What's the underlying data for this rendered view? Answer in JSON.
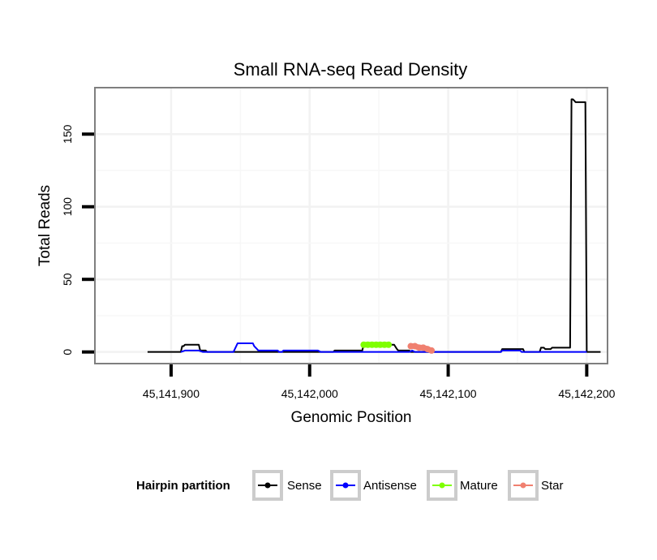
{
  "chart_data": {
    "type": "line",
    "title": "Small RNA-seq Read Density",
    "xlabel": "Genomic Position",
    "ylabel": "Total Reads",
    "xlim": [
      45141845,
      45142215
    ],
    "ylim": [
      -8,
      182
    ],
    "x_ticks": [
      45141900,
      45142000,
      45142100,
      45142200
    ],
    "x_tick_labels": [
      "45,141,900",
      "45,142,000",
      "45,142,100",
      "45,142,200"
    ],
    "y_ticks": [
      0,
      50,
      100,
      150
    ],
    "y_tick_labels": [
      "0",
      "50",
      "100",
      "150"
    ],
    "grid": true,
    "legend": {
      "title": "Hairpin partition",
      "placement": "bottom",
      "entries": [
        "Sense",
        "Antisense",
        "Mature",
        "Star"
      ]
    },
    "series": [
      {
        "name": "Sense",
        "color": "#000000",
        "style": "step",
        "x": [
          45141883,
          45141907,
          45141908,
          45141909,
          45141910,
          45141911,
          45141920,
          45141921,
          45141925,
          45141926,
          45142017,
          45142018,
          45142038,
          45142039,
          45142061,
          45142063,
          45142064,
          45142072,
          45142073,
          45142138,
          45142139,
          45142154,
          45142155,
          45142166,
          45142167,
          45142169,
          45142170,
          45142174,
          45142175,
          45142188,
          45142189,
          45142190,
          45142191,
          45142192,
          45142199,
          45142200,
          45142210
        ],
        "y": [
          0,
          0,
          4,
          4,
          5,
          5,
          5,
          1,
          1,
          0,
          0,
          1,
          1,
          5,
          5,
          2,
          1,
          1,
          0,
          0,
          2,
          2,
          0,
          0,
          3,
          3,
          2,
          2,
          3,
          3,
          174,
          174,
          173,
          172,
          172,
          0,
          0
        ]
      },
      {
        "name": "Antisense",
        "color": "#0000ff",
        "style": "step",
        "x": [
          45141907,
          45141910,
          45141920,
          45141923,
          45141945,
          45141947,
          45141948,
          45141959,
          45141960,
          45141962,
          45141963,
          45141977,
          45141978,
          45141980,
          45141981,
          45141990,
          45142006,
          45142008,
          45142072,
          45142074,
          45142076,
          45142138,
          45142139,
          45142152,
          45142153,
          45142200
        ],
        "y": [
          0,
          1,
          1,
          0,
          0,
          4,
          6,
          6,
          4,
          2,
          1,
          1,
          0,
          0,
          1,
          1,
          1,
          0,
          0,
          1,
          0,
          0,
          1,
          1,
          0,
          0
        ]
      },
      {
        "name": "Mature",
        "color": "#7fff00",
        "style": "points",
        "x": [
          45142039,
          45142042,
          45142045,
          45142048,
          45142051,
          45142054,
          45142057
        ],
        "y": [
          5,
          5,
          5,
          5,
          5,
          5,
          5
        ]
      },
      {
        "name": "Star",
        "color": "#f08070",
        "style": "points",
        "x": [
          45142073,
          45142076,
          45142079,
          45142082,
          45142085,
          45142088
        ],
        "y": [
          4,
          4,
          3,
          3,
          2,
          1
        ]
      }
    ]
  }
}
